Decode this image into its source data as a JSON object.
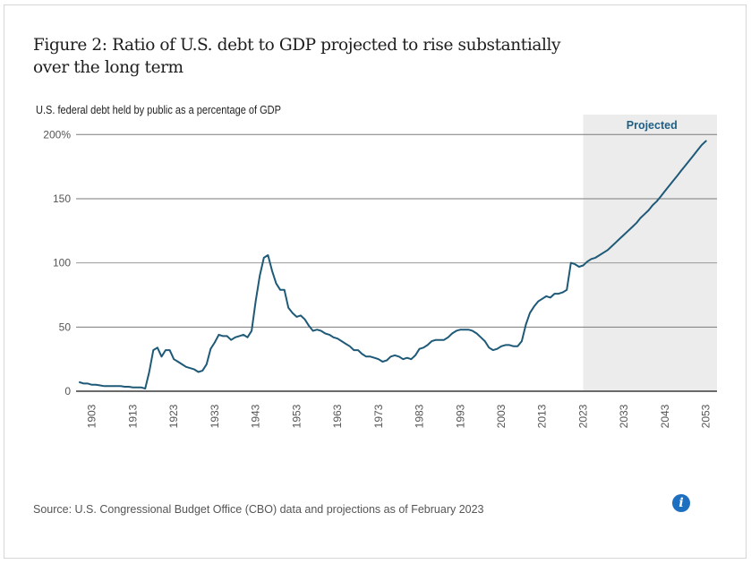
{
  "chart_data": {
    "type": "line",
    "title": "Figure 2: Ratio of U.S. debt to GDP projected to rise substantially over the long term",
    "subtitle": "U.S. federal debt held by public as a percentage of GDP",
    "xlabel": "",
    "ylabel": "U.S. federal debt held by public as a percentage of GDP",
    "ylim": [
      0,
      200
    ],
    "xlim": [
      1900,
      2053
    ],
    "grid": true,
    "y_ticks": [
      {
        "value": 0,
        "label": "0"
      },
      {
        "value": 50,
        "label": "50"
      },
      {
        "value": 100,
        "label": "100"
      },
      {
        "value": 150,
        "label": "150"
      },
      {
        "value": 200,
        "label": "200%"
      }
    ],
    "x_ticks": [
      1903,
      1913,
      1923,
      1933,
      1943,
      1953,
      1963,
      1973,
      1983,
      1993,
      2003,
      2013,
      2023,
      2033,
      2043,
      2053
    ],
    "projected_region": {
      "label": "Projected",
      "start": 2023,
      "end": 2053,
      "color": "#ececec"
    },
    "line_color": "#1e5a78",
    "series": [
      {
        "name": "Debt held by public (% of GDP)",
        "x": [
          1900,
          1901,
          1902,
          1903,
          1904,
          1905,
          1906,
          1907,
          1908,
          1909,
          1910,
          1911,
          1912,
          1913,
          1914,
          1915,
          1916,
          1917,
          1918,
          1919,
          1920,
          1921,
          1922,
          1923,
          1924,
          1925,
          1926,
          1927,
          1928,
          1929,
          1930,
          1931,
          1932,
          1933,
          1934,
          1935,
          1936,
          1937,
          1938,
          1939,
          1940,
          1941,
          1942,
          1943,
          1944,
          1945,
          1946,
          1947,
          1948,
          1949,
          1950,
          1951,
          1952,
          1953,
          1954,
          1955,
          1956,
          1957,
          1958,
          1959,
          1960,
          1961,
          1962,
          1963,
          1964,
          1965,
          1966,
          1967,
          1968,
          1969,
          1970,
          1971,
          1972,
          1973,
          1974,
          1975,
          1976,
          1977,
          1978,
          1979,
          1980,
          1981,
          1982,
          1983,
          1984,
          1985,
          1986,
          1987,
          1988,
          1989,
          1990,
          1991,
          1992,
          1993,
          1994,
          1995,
          1996,
          1997,
          1998,
          1999,
          2000,
          2001,
          2002,
          2003,
          2004,
          2005,
          2006,
          2007,
          2008,
          2009,
          2010,
          2011,
          2012,
          2013,
          2014,
          2015,
          2016,
          2017,
          2018,
          2019,
          2020,
          2021,
          2022,
          2023,
          2024,
          2025,
          2026,
          2027,
          2028,
          2029,
          2030,
          2031,
          2032,
          2033,
          2034,
          2035,
          2036,
          2037,
          2038,
          2039,
          2040,
          2041,
          2042,
          2043,
          2044,
          2045,
          2046,
          2047,
          2048,
          2049,
          2050,
          2051,
          2052,
          2053
        ],
        "values": [
          7,
          6,
          6,
          5,
          5,
          4.5,
          4,
          4,
          4,
          4,
          4,
          3.5,
          3.5,
          3,
          3,
          3,
          2,
          15,
          32,
          34,
          27,
          32,
          32,
          25,
          23,
          21,
          19,
          18,
          17,
          15,
          16,
          21,
          33,
          38,
          44,
          43,
          43,
          40,
          42,
          43,
          44,
          42,
          47,
          70,
          90,
          104,
          106,
          94,
          84,
          79,
          79,
          65,
          61,
          58,
          59,
          56,
          51,
          47,
          48,
          47,
          45,
          44,
          42,
          41,
          39,
          37,
          35,
          32,
          32,
          29,
          27,
          27,
          26,
          25,
          23,
          24,
          27,
          28,
          27,
          25,
          26,
          25,
          28,
          33,
          34,
          36,
          39,
          40,
          40,
          40,
          42,
          45,
          47,
          48,
          48,
          48,
          47,
          45,
          42,
          39,
          34,
          32,
          33,
          35,
          36,
          36,
          35,
          35,
          39,
          52,
          61,
          66,
          70,
          72,
          74,
          73,
          76,
          76,
          77,
          79,
          100,
          99,
          97,
          98,
          101,
          103,
          104,
          106,
          108,
          110,
          113,
          116,
          119,
          122,
          125,
          128,
          131,
          135,
          138,
          141,
          145,
          148,
          152,
          156,
          160,
          164,
          168,
          172,
          176,
          180,
          184,
          188,
          192,
          195
        ]
      }
    ],
    "source": "Source: U.S. Congressional Budget Office (CBO) data and projections as of February 2023"
  },
  "info_button": {
    "icon": "info-icon",
    "glyph": "i",
    "color": "#1f6fc1"
  }
}
